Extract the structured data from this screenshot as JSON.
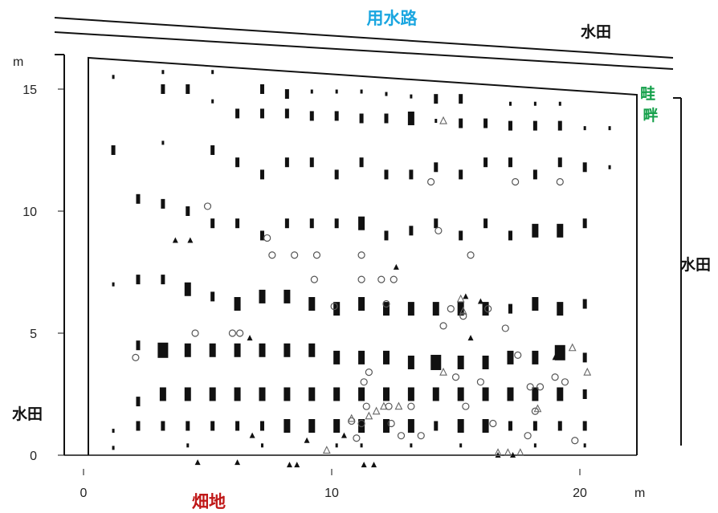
{
  "chart_data": {
    "type": "scatter",
    "title": "",
    "xlabel": "",
    "ylabel": "",
    "x_unit": "m",
    "y_unit": "m",
    "xlim": [
      0,
      22
    ],
    "ylim": [
      0,
      16.5
    ],
    "x_ticks": [
      0,
      10,
      20
    ],
    "y_ticks": [
      0,
      5,
      10,
      15
    ],
    "grid": false,
    "legend": "none",
    "surroundings": {
      "top": "用水路",
      "top_right": "水田",
      "right_top": "畦畔",
      "right": "水田",
      "left": "水田",
      "bottom": "畑地"
    },
    "colors": {
      "canal_label": "#1aa6e0",
      "levee_label": "#14a04a",
      "field_label": "#c01818",
      "paddy_label": "#111111",
      "marker": "#111111",
      "open_marker": "#555555",
      "triangle_open": "#666666"
    },
    "grid_points": {
      "rows": 16,
      "row_step_m": 1,
      "cols": 21,
      "col_step_m": 1,
      "x_start_m": 1.2,
      "y_start_m": 1.2,
      "note_size_scale": "mark height proportional to count"
    },
    "series": [
      {
        "marker": "bar",
        "points": [
          [
            1.2,
            15.5,
            1
          ],
          [
            3.2,
            15.7,
            1
          ],
          [
            5.2,
            15.7,
            1
          ],
          [
            7.2,
            15.0,
            2
          ],
          [
            8.2,
            14.8,
            2
          ],
          [
            9.2,
            14.9,
            1
          ],
          [
            10.2,
            14.9,
            1
          ],
          [
            11.2,
            14.9,
            1
          ],
          [
            12.2,
            14.8,
            1
          ],
          [
            13.2,
            14.7,
            1
          ],
          [
            14.2,
            14.6,
            2
          ],
          [
            15.2,
            14.6,
            2
          ],
          [
            17.2,
            14.4,
            1
          ],
          [
            18.2,
            14.4,
            1
          ],
          [
            19.2,
            14.4,
            1
          ],
          [
            3.2,
            15.0,
            2
          ],
          [
            4.2,
            15.0,
            2
          ],
          [
            5.2,
            14.5,
            1
          ],
          [
            6.2,
            14.0,
            2
          ],
          [
            7.2,
            14.0,
            2
          ],
          [
            8.2,
            14.0,
            2
          ],
          [
            9.2,
            13.9,
            2
          ],
          [
            10.2,
            13.9,
            2
          ],
          [
            11.2,
            13.8,
            2
          ],
          [
            12.2,
            13.8,
            2
          ],
          [
            13.2,
            13.8,
            3
          ],
          [
            14.2,
            13.7,
            1
          ],
          [
            15.2,
            13.6,
            2
          ],
          [
            16.2,
            13.6,
            2
          ],
          [
            17.2,
            13.5,
            2
          ],
          [
            18.2,
            13.5,
            2
          ],
          [
            19.2,
            13.5,
            2
          ],
          [
            20.2,
            13.4,
            1
          ],
          [
            21.2,
            13.4,
            1
          ],
          [
            1.2,
            12.5,
            2
          ],
          [
            3.2,
            12.8,
            1
          ],
          [
            5.2,
            12.5,
            2
          ],
          [
            6.2,
            12.0,
            2
          ],
          [
            7.2,
            11.5,
            2
          ],
          [
            8.2,
            12.0,
            2
          ],
          [
            9.2,
            12.0,
            2
          ],
          [
            10.2,
            11.5,
            2
          ],
          [
            11.2,
            12.0,
            2
          ],
          [
            12.2,
            11.5,
            2
          ],
          [
            13.2,
            11.5,
            2
          ],
          [
            14.2,
            11.8,
            2
          ],
          [
            15.2,
            11.5,
            2
          ],
          [
            16.2,
            12.0,
            2
          ],
          [
            17.2,
            12.0,
            2
          ],
          [
            18.2,
            11.5,
            2
          ],
          [
            19.2,
            12.0,
            2
          ],
          [
            20.2,
            11.8,
            2
          ],
          [
            21.2,
            11.8,
            1
          ],
          [
            2.2,
            10.5,
            2
          ],
          [
            3.2,
            10.3,
            2
          ],
          [
            4.2,
            10.0,
            2
          ],
          [
            5.2,
            9.5,
            2
          ],
          [
            6.2,
            9.5,
            2
          ],
          [
            7.2,
            9.0,
            2
          ],
          [
            8.2,
            9.5,
            2
          ],
          [
            9.2,
            9.5,
            2
          ],
          [
            10.2,
            9.5,
            2
          ],
          [
            11.2,
            9.5,
            3
          ],
          [
            12.2,
            9.0,
            2
          ],
          [
            13.2,
            9.2,
            2
          ],
          [
            14.2,
            9.5,
            2
          ],
          [
            15.2,
            9.0,
            2
          ],
          [
            16.2,
            9.5,
            2
          ],
          [
            17.2,
            9.0,
            2
          ],
          [
            18.2,
            9.2,
            3
          ],
          [
            19.2,
            9.2,
            3
          ],
          [
            20.2,
            9.5,
            2
          ],
          [
            1.2,
            7.0,
            1
          ],
          [
            2.2,
            7.2,
            2
          ],
          [
            3.2,
            7.2,
            2
          ],
          [
            4.2,
            6.8,
            3
          ],
          [
            5.2,
            6.5,
            2
          ],
          [
            6.2,
            6.2,
            3
          ],
          [
            7.2,
            6.5,
            3
          ],
          [
            8.2,
            6.5,
            3
          ],
          [
            9.2,
            6.2,
            3
          ],
          [
            10.2,
            6.0,
            3
          ],
          [
            11.2,
            6.2,
            3
          ],
          [
            12.2,
            6.0,
            3
          ],
          [
            13.2,
            6.0,
            3
          ],
          [
            14.2,
            6.0,
            3
          ],
          [
            15.2,
            6.0,
            3
          ],
          [
            16.2,
            6.0,
            3
          ],
          [
            17.2,
            6.0,
            2
          ],
          [
            18.2,
            6.2,
            3
          ],
          [
            19.2,
            6.0,
            3
          ],
          [
            20.2,
            6.2,
            2
          ],
          [
            2.2,
            4.5,
            2
          ],
          [
            3.2,
            4.3,
            4
          ],
          [
            4.2,
            4.3,
            3
          ],
          [
            5.2,
            4.3,
            3
          ],
          [
            6.2,
            4.3,
            3
          ],
          [
            7.2,
            4.3,
            3
          ],
          [
            8.2,
            4.3,
            3
          ],
          [
            9.2,
            4.3,
            3
          ],
          [
            10.2,
            4.0,
            3
          ],
          [
            11.2,
            4.0,
            3
          ],
          [
            12.2,
            4.0,
            3
          ],
          [
            13.2,
            3.8,
            3
          ],
          [
            14.2,
            3.8,
            4
          ],
          [
            15.2,
            3.8,
            3
          ],
          [
            16.2,
            3.8,
            3
          ],
          [
            17.2,
            4.0,
            3
          ],
          [
            18.2,
            4.0,
            3
          ],
          [
            19.2,
            4.2,
            4
          ],
          [
            20.2,
            4.0,
            2
          ],
          [
            2.2,
            2.2,
            2
          ],
          [
            3.2,
            2.5,
            3
          ],
          [
            4.2,
            2.5,
            3
          ],
          [
            5.2,
            2.5,
            3
          ],
          [
            6.2,
            2.5,
            3
          ],
          [
            7.2,
            2.5,
            3
          ],
          [
            8.2,
            2.5,
            3
          ],
          [
            9.2,
            2.5,
            3
          ],
          [
            10.2,
            2.5,
            3
          ],
          [
            11.2,
            2.5,
            3
          ],
          [
            12.2,
            2.5,
            3
          ],
          [
            13.2,
            2.5,
            3
          ],
          [
            14.2,
            2.5,
            3
          ],
          [
            15.2,
            2.5,
            3
          ],
          [
            16.2,
            2.5,
            3
          ],
          [
            17.2,
            2.5,
            3
          ],
          [
            18.2,
            2.5,
            3
          ],
          [
            19.2,
            2.5,
            3
          ],
          [
            20.2,
            2.5,
            2
          ],
          [
            1.2,
            1.0,
            1
          ],
          [
            2.2,
            1.2,
            2
          ],
          [
            3.2,
            1.2,
            2
          ],
          [
            4.2,
            1.2,
            2
          ],
          [
            5.2,
            1.2,
            2
          ],
          [
            6.2,
            1.2,
            2
          ],
          [
            7.2,
            1.2,
            2
          ],
          [
            8.2,
            1.2,
            3
          ],
          [
            9.2,
            1.2,
            3
          ],
          [
            10.2,
            1.2,
            3
          ],
          [
            11.2,
            1.2,
            3
          ],
          [
            12.2,
            1.2,
            3
          ],
          [
            13.2,
            1.2,
            3
          ],
          [
            14.2,
            1.2,
            2
          ],
          [
            15.2,
            1.2,
            3
          ],
          [
            16.2,
            1.2,
            3
          ],
          [
            17.2,
            1.2,
            2
          ],
          [
            18.2,
            1.2,
            2
          ],
          [
            19.2,
            1.2,
            2
          ],
          [
            20.2,
            1.2,
            2
          ],
          [
            1.2,
            0.3,
            1
          ],
          [
            4.2,
            0.4,
            1
          ],
          [
            7.2,
            0.4,
            1
          ],
          [
            10.2,
            0.4,
            1
          ],
          [
            11.2,
            0.4,
            1
          ],
          [
            13.2,
            0.4,
            1
          ],
          [
            15.2,
            0.4,
            1
          ],
          [
            18.2,
            0.4,
            1
          ],
          [
            20.2,
            0.4,
            1
          ]
        ]
      },
      {
        "marker": "open_circle",
        "points": [
          [
            2.1,
            4.0
          ],
          [
            4.5,
            5.0
          ],
          [
            5.0,
            10.2
          ],
          [
            6.0,
            5.0
          ],
          [
            6.3,
            5.0
          ],
          [
            7.4,
            8.9
          ],
          [
            7.6,
            8.2
          ],
          [
            8.5,
            8.2
          ],
          [
            9.3,
            7.2
          ],
          [
            9.4,
            8.2
          ],
          [
            10.1,
            6.1
          ],
          [
            10.8,
            1.4
          ],
          [
            11.0,
            0.7
          ],
          [
            11.2,
            7.2
          ],
          [
            11.2,
            8.2
          ],
          [
            11.3,
            3.0
          ],
          [
            11.5,
            3.4
          ],
          [
            11.2,
            1.3
          ],
          [
            11.4,
            2.0
          ],
          [
            12.0,
            7.2
          ],
          [
            12.2,
            6.2
          ],
          [
            12.5,
            7.2
          ],
          [
            12.3,
            2.0
          ],
          [
            12.4,
            1.3
          ],
          [
            12.8,
            0.8
          ],
          [
            13.2,
            2.0
          ],
          [
            13.6,
            0.8
          ],
          [
            14.0,
            11.2
          ],
          [
            14.3,
            9.2
          ],
          [
            14.5,
            5.3
          ],
          [
            14.8,
            6.0
          ],
          [
            15.0,
            3.2
          ],
          [
            15.3,
            5.7
          ],
          [
            15.4,
            2.0
          ],
          [
            15.6,
            8.2
          ],
          [
            16.0,
            3.0
          ],
          [
            16.3,
            6.0
          ],
          [
            16.5,
            1.3
          ],
          [
            17.0,
            5.2
          ],
          [
            17.4,
            11.2
          ],
          [
            17.5,
            4.1
          ],
          [
            17.9,
            0.8
          ],
          [
            18.0,
            2.8
          ],
          [
            18.2,
            1.8
          ],
          [
            18.4,
            2.8
          ],
          [
            19.2,
            11.2
          ],
          [
            19.0,
            3.2
          ],
          [
            19.4,
            3.0
          ],
          [
            19.8,
            0.6
          ]
        ]
      },
      {
        "marker": "filled_triangle",
        "points": [
          [
            3.7,
            8.8
          ],
          [
            4.3,
            8.8
          ],
          [
            6.7,
            4.8
          ],
          [
            4.6,
            -0.3
          ],
          [
            6.2,
            -0.3
          ],
          [
            6.8,
            0.8
          ],
          [
            8.3,
            -0.4
          ],
          [
            8.6,
            -0.4
          ],
          [
            9.0,
            0.6
          ],
          [
            10.5,
            0.8
          ],
          [
            11.3,
            -0.4
          ],
          [
            11.7,
            -0.4
          ],
          [
            12.6,
            7.7
          ],
          [
            15.4,
            6.5
          ],
          [
            15.6,
            4.8
          ],
          [
            16.0,
            6.3
          ],
          [
            19.0,
            4.0
          ],
          [
            16.7,
            0.0
          ],
          [
            17.3,
            0.0
          ]
        ]
      },
      {
        "marker": "open_triangle",
        "points": [
          [
            9.8,
            0.2
          ],
          [
            10.8,
            1.5
          ],
          [
            11.5,
            1.6
          ],
          [
            11.8,
            1.8
          ],
          [
            12.1,
            2.0
          ],
          [
            12.7,
            2.0
          ],
          [
            14.5,
            13.7
          ],
          [
            14.5,
            3.4
          ],
          [
            15.2,
            6.4
          ],
          [
            15.3,
            5.9
          ],
          [
            16.7,
            0.1
          ],
          [
            17.1,
            0.1
          ],
          [
            17.6,
            0.1
          ],
          [
            18.3,
            1.9
          ],
          [
            19.7,
            4.4
          ],
          [
            20.3,
            3.4
          ]
        ]
      }
    ]
  }
}
